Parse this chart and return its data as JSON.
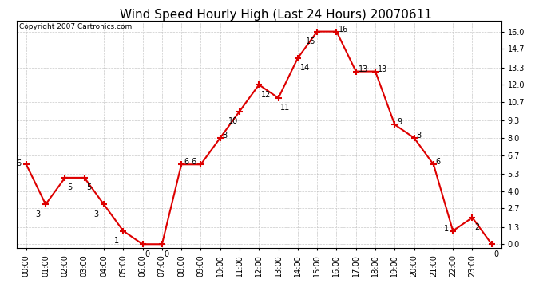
{
  "title": "Wind Speed Hourly High (Last 24 Hours) 20070611",
  "copyright_text": "Copyright 2007 Cartronics.com",
  "hours": [
    "00:00",
    "01:00",
    "02:00",
    "03:00",
    "04:00",
    "05:00",
    "06:00",
    "07:00",
    "08:00",
    "09:00",
    "10:00",
    "11:00",
    "12:00",
    "13:00",
    "14:00",
    "15:00",
    "16:00",
    "17:00",
    "18:00",
    "19:00",
    "20:00",
    "21:00",
    "22:00",
    "23:00"
  ],
  "values": [
    6,
    3,
    5,
    5,
    3,
    1,
    0,
    0,
    6,
    6,
    8,
    10,
    12,
    11,
    14,
    16,
    16,
    13,
    13,
    9,
    8,
    6,
    1,
    2,
    0
  ],
  "yticks": [
    0.0,
    1.3,
    2.7,
    4.0,
    5.3,
    6.7,
    8.0,
    9.3,
    10.7,
    12.0,
    13.3,
    14.7,
    16.0
  ],
  "line_color": "#dd0000",
  "bg_color": "#ffffff",
  "grid_color": "#bbbbbb",
  "title_fontsize": 11,
  "axis_fontsize": 7,
  "label_fontsize": 7,
  "copyright_fontsize": 6.5
}
